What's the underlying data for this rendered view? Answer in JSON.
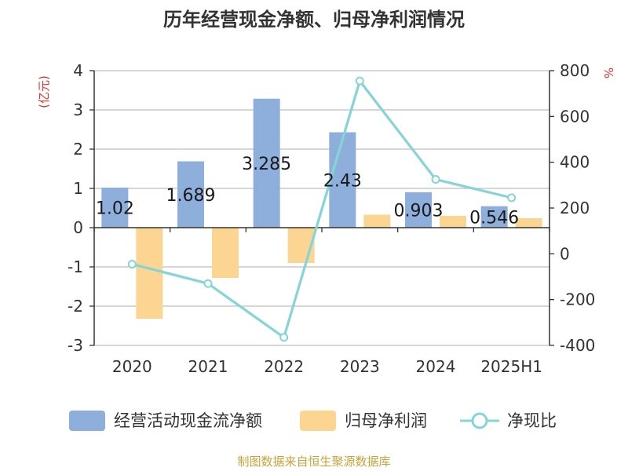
{
  "colors": {
    "cash_flow": "#8eaedc",
    "net_profit": "#fdd593",
    "ratio_line": "#84d4d8",
    "grid": "#bdbdbd",
    "axis": "#333333",
    "unit": "#e8302a",
    "source": "#c8a23a"
  },
  "chart_data": {
    "type": "bar",
    "title": "历年经营现金净额、归母净利润情况",
    "categories": [
      "2020",
      "2021",
      "2022",
      "2023",
      "2024",
      "2025H1"
    ],
    "y_left": {
      "unit_label": "(亿元)",
      "ylim": [
        -3,
        4
      ],
      "ticks": [
        "4",
        "3",
        "2",
        "1",
        "0",
        "-1",
        "-2",
        "-3"
      ]
    },
    "y_right": {
      "unit_label": "%",
      "ylim": [
        -400,
        800
      ],
      "ticks": [
        "800",
        "600",
        "400",
        "200",
        "0",
        "-200",
        "-400"
      ]
    },
    "grid": true,
    "legend_position": "bottom",
    "series": [
      {
        "name": "经营活动现金流净额",
        "kind": "bar",
        "axis": "left",
        "values": [
          1.02,
          1.689,
          3.285,
          2.43,
          0.903,
          0.546
        ],
        "labels": [
          "1.02",
          "1.689",
          "3.285",
          "2.43",
          "0.903",
          "0.546"
        ]
      },
      {
        "name": "归母净利润",
        "kind": "bar",
        "axis": "left",
        "values": [
          -2.32,
          -1.28,
          -0.9,
          0.33,
          0.3,
          0.24
        ]
      },
      {
        "name": "净现比",
        "kind": "line",
        "axis": "right",
        "values": [
          -45,
          -130,
          -365,
          755,
          325,
          245
        ]
      }
    ],
    "source": "制图数据来自恒生聚源数据库"
  }
}
